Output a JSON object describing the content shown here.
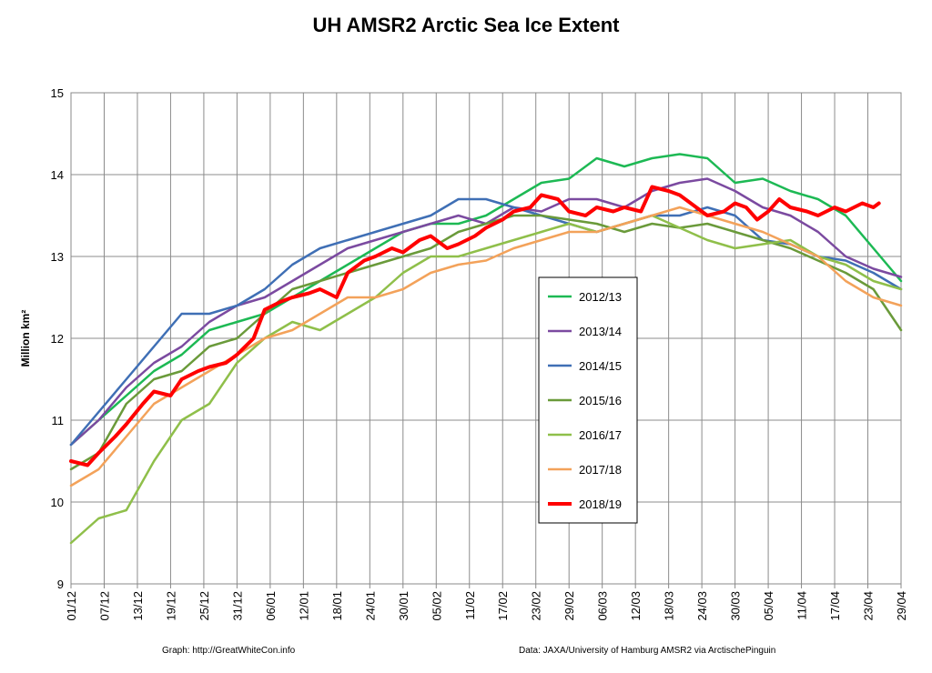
{
  "chart_data": {
    "type": "line",
    "title": "UH AMSR2 Arctic Sea Ice Extent",
    "ylabel": "Million km²",
    "xlabel": "",
    "ylim": [
      9,
      15
    ],
    "yticks": [
      9,
      10,
      11,
      12,
      13,
      14,
      15
    ],
    "x_tick_labels": [
      "01/12",
      "07/12",
      "13/12",
      "19/12",
      "25/12",
      "31/12",
      "06/01",
      "12/01",
      "18/01",
      "24/01",
      "30/01",
      "05/02",
      "11/02",
      "17/02",
      "23/02",
      "29/02",
      "06/03",
      "12/03",
      "18/03",
      "24/03",
      "30/03",
      "05/04",
      "11/04",
      "17/04",
      "23/04",
      "29/04"
    ],
    "x_unit": "day index (0 = 01/12)",
    "xlim": [
      0,
      150
    ],
    "grid": true,
    "legend_position": "center-right",
    "series": [
      {
        "name": "2012/13",
        "color": "#1db954",
        "x": [
          0,
          5,
          10,
          15,
          20,
          25,
          30,
          35,
          40,
          45,
          50,
          55,
          60,
          65,
          70,
          75,
          80,
          85,
          90,
          95,
          100,
          105,
          110,
          115,
          120,
          125,
          130,
          135,
          140,
          145,
          150
        ],
        "y": [
          10.7,
          11.0,
          11.3,
          11.6,
          11.8,
          12.1,
          12.2,
          12.3,
          12.5,
          12.7,
          12.9,
          13.1,
          13.3,
          13.4,
          13.4,
          13.5,
          13.7,
          13.9,
          13.95,
          14.2,
          14.1,
          14.2,
          14.25,
          14.2,
          13.9,
          13.95,
          13.8,
          13.7,
          13.5,
          13.1,
          12.7
        ]
      },
      {
        "name": "2013/14",
        "color": "#7b4aa0",
        "x": [
          0,
          5,
          10,
          15,
          20,
          25,
          30,
          35,
          40,
          45,
          50,
          55,
          60,
          65,
          70,
          75,
          80,
          85,
          90,
          95,
          100,
          105,
          110,
          115,
          120,
          125,
          130,
          135,
          140,
          145,
          150
        ],
        "y": [
          10.7,
          11.0,
          11.4,
          11.7,
          11.9,
          12.2,
          12.4,
          12.5,
          12.7,
          12.9,
          13.1,
          13.2,
          13.3,
          13.4,
          13.5,
          13.4,
          13.6,
          13.55,
          13.7,
          13.7,
          13.6,
          13.8,
          13.9,
          13.95,
          13.8,
          13.6,
          13.5,
          13.3,
          13.0,
          12.85,
          12.75
        ]
      },
      {
        "name": "2014/15",
        "color": "#3f6fb5",
        "x": [
          0,
          5,
          10,
          15,
          20,
          25,
          30,
          35,
          40,
          45,
          50,
          55,
          60,
          65,
          70,
          75,
          80,
          85,
          90,
          95,
          100,
          105,
          110,
          115,
          120,
          125,
          130,
          135,
          140,
          145,
          150
        ],
        "y": [
          10.7,
          11.1,
          11.5,
          11.9,
          12.3,
          12.3,
          12.4,
          12.6,
          12.9,
          13.1,
          13.2,
          13.3,
          13.4,
          13.5,
          13.7,
          13.7,
          13.6,
          13.5,
          13.4,
          13.3,
          13.4,
          13.5,
          13.5,
          13.6,
          13.5,
          13.2,
          13.15,
          13.0,
          12.95,
          12.8,
          12.6
        ]
      },
      {
        "name": "2015/16",
        "color": "#6a9a3a",
        "x": [
          0,
          5,
          10,
          15,
          20,
          25,
          30,
          35,
          40,
          45,
          50,
          55,
          60,
          65,
          70,
          75,
          80,
          85,
          90,
          95,
          100,
          105,
          110,
          115,
          120,
          125,
          130,
          135,
          140,
          145,
          150
        ],
        "y": [
          10.4,
          10.6,
          11.2,
          11.5,
          11.6,
          11.9,
          12.0,
          12.3,
          12.6,
          12.7,
          12.8,
          12.9,
          13.0,
          13.1,
          13.3,
          13.4,
          13.5,
          13.5,
          13.45,
          13.4,
          13.3,
          13.4,
          13.35,
          13.4,
          13.3,
          13.2,
          13.1,
          12.95,
          12.8,
          12.6,
          12.1
        ]
      },
      {
        "name": "2016/17",
        "color": "#8fbf4a",
        "x": [
          0,
          5,
          10,
          15,
          20,
          25,
          30,
          35,
          40,
          45,
          50,
          55,
          60,
          65,
          70,
          75,
          80,
          85,
          90,
          95,
          100,
          105,
          110,
          115,
          120,
          125,
          130,
          135,
          140,
          145,
          150
        ],
        "y": [
          9.5,
          9.8,
          9.9,
          10.5,
          11.0,
          11.2,
          11.7,
          12.0,
          12.2,
          12.1,
          12.3,
          12.5,
          12.8,
          13.0,
          13.0,
          13.1,
          13.2,
          13.3,
          13.4,
          13.3,
          13.4,
          13.5,
          13.35,
          13.2,
          13.1,
          13.15,
          13.2,
          13.0,
          12.9,
          12.7,
          12.6
        ]
      },
      {
        "name": "2017/18",
        "color": "#f3a25a",
        "x": [
          0,
          5,
          10,
          15,
          20,
          25,
          30,
          35,
          40,
          45,
          50,
          55,
          60,
          65,
          70,
          75,
          80,
          85,
          90,
          95,
          100,
          105,
          110,
          115,
          120,
          125,
          130,
          135,
          140,
          145,
          150
        ],
        "y": [
          10.2,
          10.4,
          10.8,
          11.2,
          11.4,
          11.6,
          11.8,
          12.0,
          12.1,
          12.3,
          12.5,
          12.5,
          12.6,
          12.8,
          12.9,
          12.95,
          13.1,
          13.2,
          13.3,
          13.3,
          13.4,
          13.5,
          13.6,
          13.5,
          13.4,
          13.3,
          13.15,
          13.0,
          12.7,
          12.5,
          12.4
        ]
      },
      {
        "name": "2018/19",
        "color": "#ff0000",
        "x": [
          0,
          3,
          5,
          8,
          10,
          13,
          15,
          18,
          20,
          23,
          25,
          28,
          30,
          33,
          35,
          38,
          40,
          43,
          45,
          48,
          50,
          53,
          55,
          58,
          60,
          63,
          65,
          68,
          70,
          73,
          75,
          78,
          80,
          83,
          85,
          88,
          90,
          93,
          95,
          98,
          100,
          103,
          105,
          108,
          110,
          113,
          115,
          118,
          120,
          122,
          124,
          126,
          128,
          130,
          133,
          135,
          138,
          140,
          143,
          145,
          146
        ],
        "y": [
          10.5,
          10.45,
          10.6,
          10.8,
          10.95,
          11.2,
          11.35,
          11.3,
          11.5,
          11.6,
          11.65,
          11.7,
          11.8,
          12.0,
          12.35,
          12.45,
          12.5,
          12.55,
          12.6,
          12.5,
          12.8,
          12.95,
          13.0,
          13.1,
          13.05,
          13.2,
          13.25,
          13.1,
          13.15,
          13.25,
          13.35,
          13.45,
          13.55,
          13.6,
          13.75,
          13.7,
          13.55,
          13.5,
          13.6,
          13.55,
          13.6,
          13.55,
          13.85,
          13.8,
          13.75,
          13.6,
          13.5,
          13.55,
          13.65,
          13.6,
          13.45,
          13.55,
          13.7,
          13.6,
          13.55,
          13.5,
          13.6,
          13.55,
          13.65,
          13.6,
          13.65
        ]
      }
    ]
  },
  "credits": {
    "graph": "Graph: http://GreatWhiteCon.info",
    "data": "Data: JAXA/University of Hamburg AMSR2 via ArctischePinguin"
  }
}
